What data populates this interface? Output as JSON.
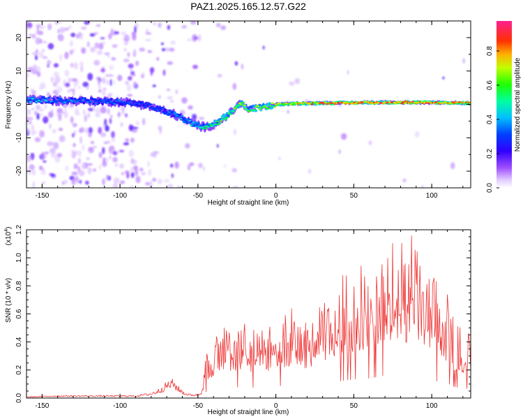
{
  "title": "PAZ1.2025.165.12.57.G22",
  "chart_data": [
    {
      "type": "heatmap",
      "xlabel": "Height of straight line (km)",
      "ylabel": "Frequency (Hz)",
      "xlim": [
        -160,
        125
      ],
      "ylim": [
        -25,
        25
      ],
      "x_ticks": [
        -150,
        -100,
        -50,
        0,
        50,
        100
      ],
      "y_ticks": [
        -20,
        -10,
        0,
        10,
        20
      ],
      "colorbar": {
        "label": "Normalized spectral amplitude",
        "range": [
          0,
          1
        ],
        "ticks": [
          "0.0",
          "0.2",
          "0.4",
          "0.6",
          "0.8"
        ],
        "colormap": [
          "#ffffff",
          "#cc99ff",
          "#8800ff",
          "#0000ff",
          "#00ffff",
          "#00ff00",
          "#ffff00",
          "#ff8800",
          "#ff0000",
          "#ff33aa"
        ]
      },
      "ridge": {
        "x": [
          -160,
          -140,
          -120,
          -100,
          -85,
          -75,
          -65,
          -55,
          -45,
          -38,
          -33,
          -28,
          -25,
          -22,
          -18,
          -10,
          0,
          10,
          30,
          50,
          70,
          90,
          110,
          125
        ],
        "frequency": [
          1.5,
          1.2,
          1.0,
          0.8,
          0.0,
          -1.5,
          -3.0,
          -5.5,
          -7.0,
          -5.5,
          -4.0,
          -2.0,
          -0.5,
          0.5,
          -1.5,
          -1.0,
          0.0,
          0.2,
          0.4,
          0.5,
          0.6,
          0.6,
          0.5,
          0.4
        ],
        "amplitude": [
          0.45,
          0.4,
          0.35,
          0.35,
          0.3,
          0.32,
          0.38,
          0.45,
          0.55,
          0.6,
          0.65,
          0.7,
          0.72,
          0.75,
          0.6,
          0.7,
          0.75,
          0.78,
          0.85,
          0.9,
          0.92,
          0.9,
          0.88,
          0.85
        ]
      }
    },
    {
      "type": "line",
      "xlabel": "Height of straight line (km)",
      "ylabel": "SNR (10 * v/v)",
      "y_exponent": "(x10",
      "y_exponent_power": "4",
      "xlim": [
        -160,
        125
      ],
      "ylim": [
        0,
        1.2
      ],
      "x_ticks": [
        -150,
        -100,
        -50,
        0,
        50,
        100
      ],
      "y_ticks": [
        "0.0",
        "0.2",
        "0.4",
        "0.6",
        "0.8",
        "1.0",
        "1.2"
      ],
      "series": [
        {
          "color": "#ee3333",
          "envelope": {
            "x": [
              -160,
              -140,
              -120,
              -100,
              -90,
              -80,
              -75,
              -70,
              -66,
              -62,
              -58,
              -55,
              -50,
              -48,
              -45,
              -40,
              -30,
              -20,
              -10,
              0,
              10,
              20,
              30,
              40,
              50,
              60,
              70,
              80,
              90,
              100,
              110,
              115,
              125
            ],
            "y": [
              0.01,
              0.02,
              0.02,
              0.02,
              0.02,
              0.04,
              0.07,
              0.12,
              0.14,
              0.08,
              0.04,
              0.03,
              0.03,
              0.05,
              0.3,
              0.45,
              0.55,
              0.55,
              0.5,
              0.6,
              0.65,
              0.6,
              0.75,
              0.85,
              0.95,
              1.0,
              1.15,
              1.1,
              1.2,
              0.9,
              0.75,
              0.55,
              0.45
            ]
          }
        }
      ]
    }
  ]
}
